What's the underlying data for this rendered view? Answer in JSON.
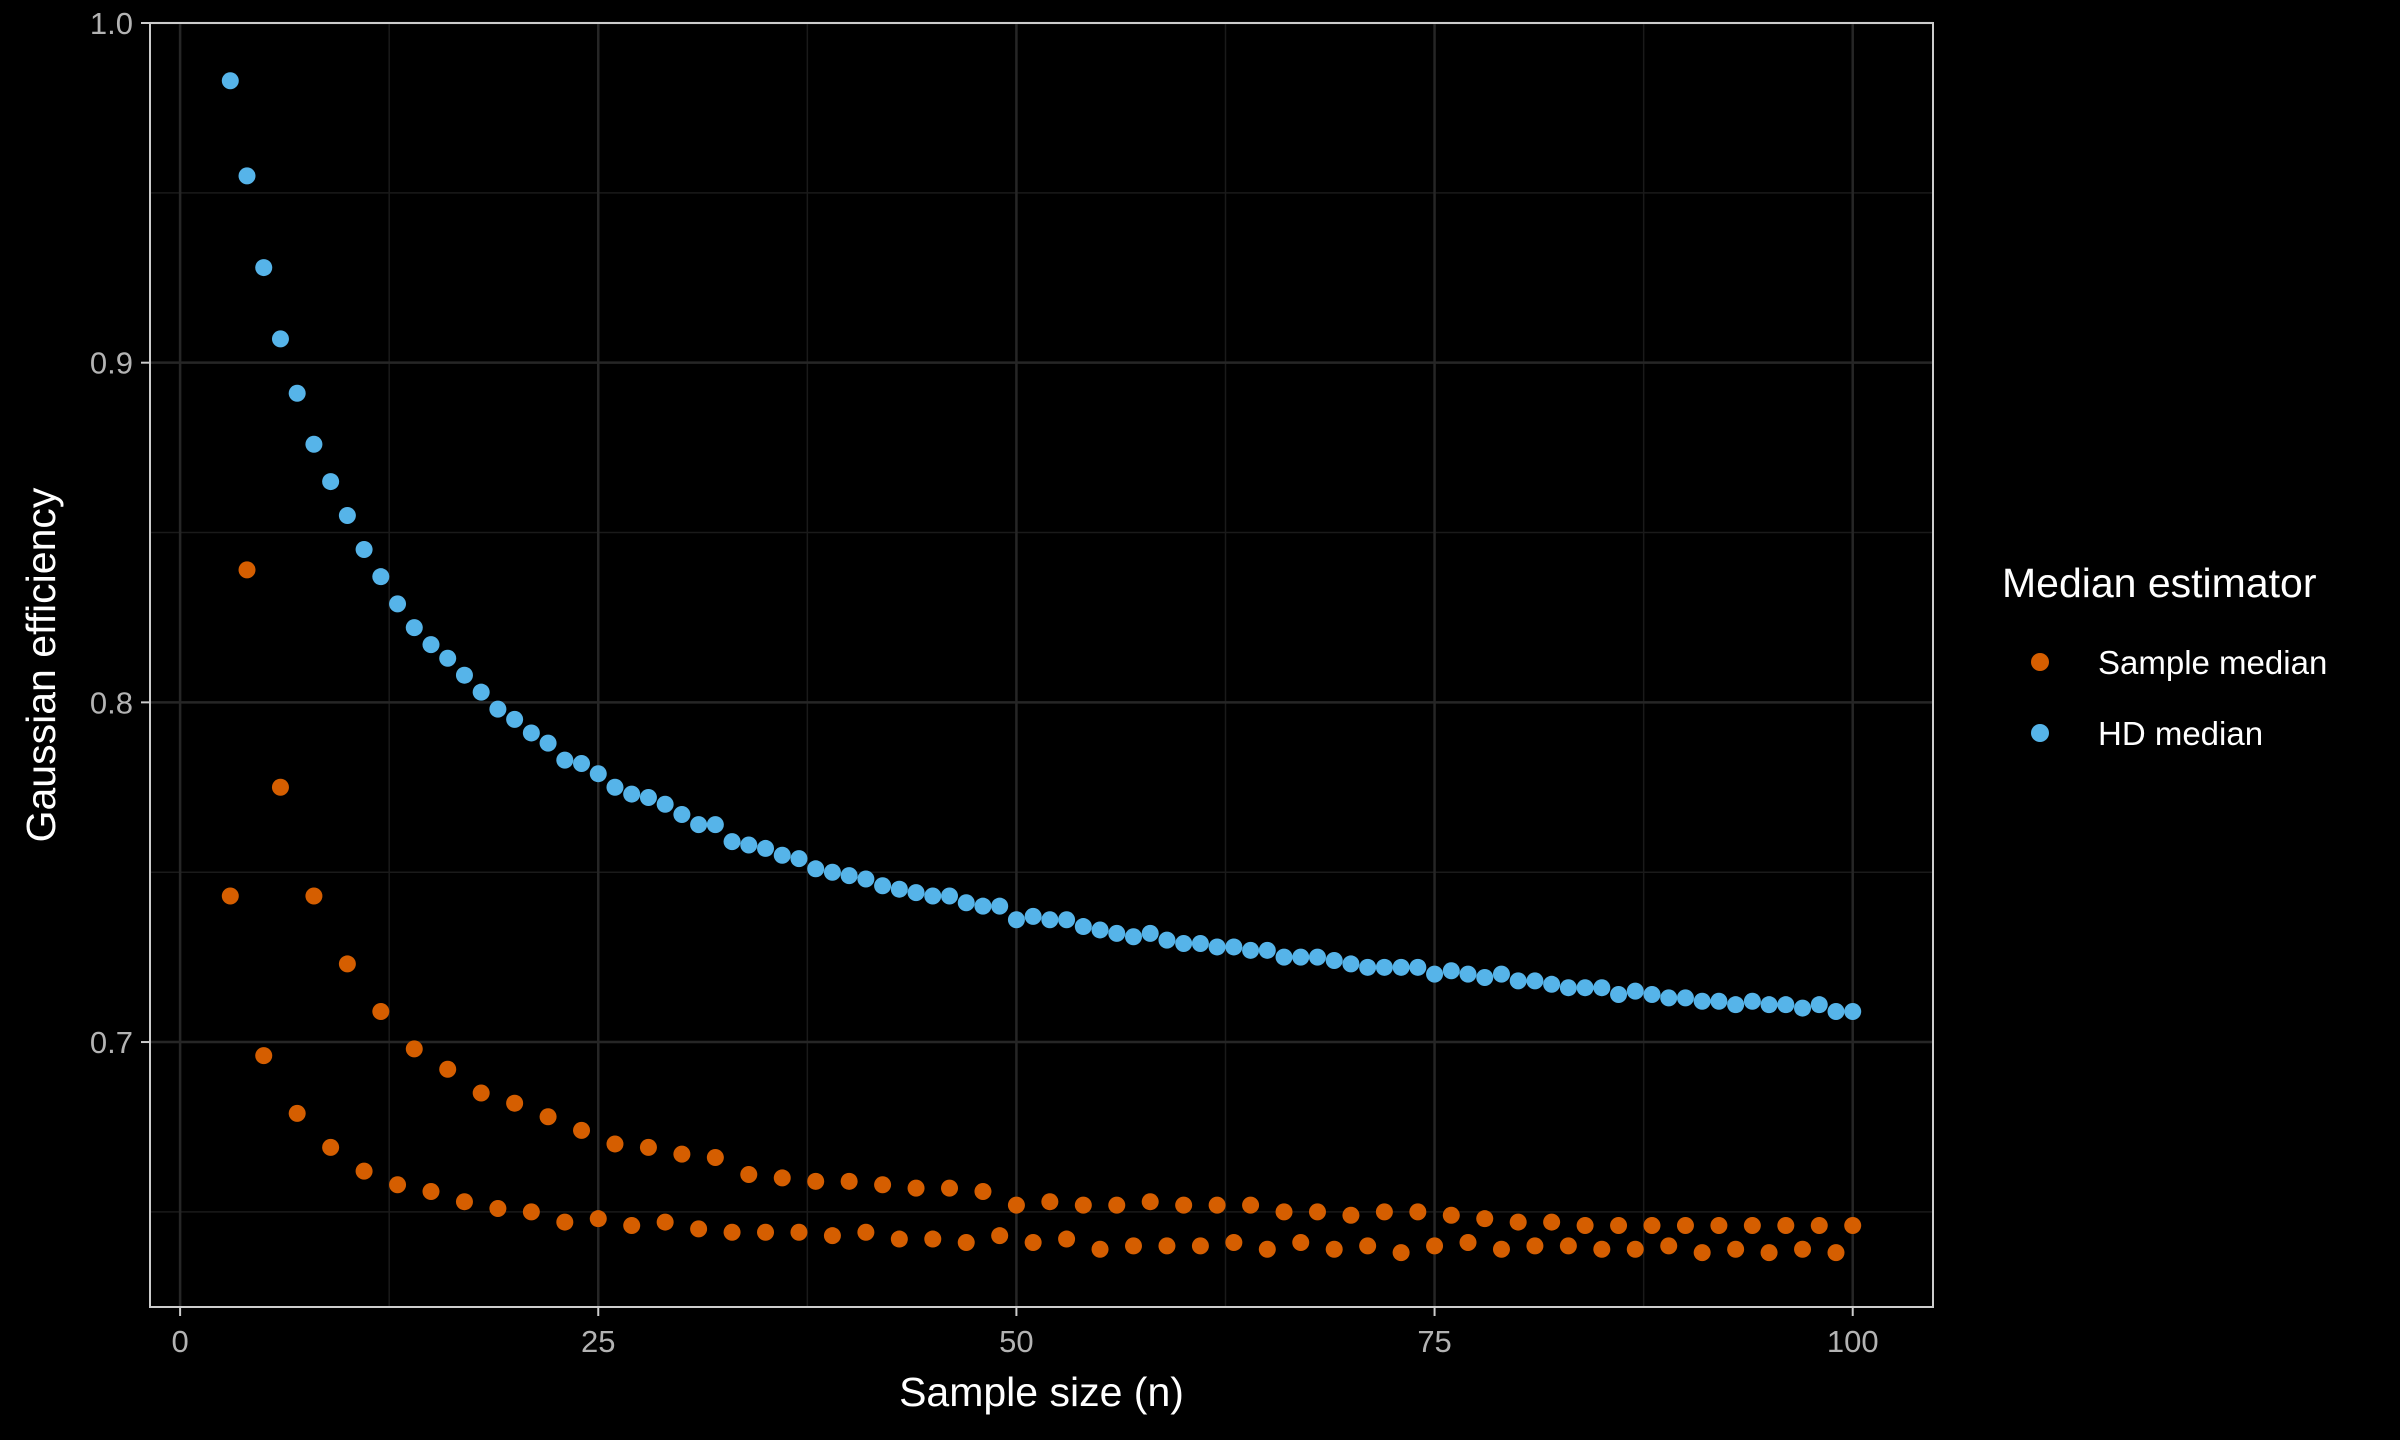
{
  "chart_data": {
    "type": "scatter",
    "title": "",
    "xlabel": "Sample size (n)",
    "ylabel": "Gaussian efficiency",
    "xlim": [
      -1.8,
      104.8
    ],
    "ylim": [
      0.622,
      1.0
    ],
    "x_ticks": [
      0,
      25,
      50,
      75,
      100
    ],
    "x_tick_labels": [
      "0",
      "25",
      "50",
      "75",
      "100"
    ],
    "y_ticks": [
      0.7,
      0.8,
      0.9,
      1.0
    ],
    "y_tick_labels": [
      "0.7",
      "0.8",
      "0.9",
      "1.0"
    ],
    "grid": true,
    "legend": {
      "title": "Median estimator",
      "position": "right"
    },
    "series": [
      {
        "name": "Sample median",
        "color": "#d55e00",
        "x": [
          3,
          4,
          5,
          6,
          7,
          8,
          9,
          10,
          11,
          12,
          13,
          14,
          15,
          16,
          17,
          18,
          19,
          20,
          21,
          22,
          23,
          24,
          25,
          26,
          27,
          28,
          29,
          30,
          31,
          32,
          33,
          34,
          35,
          36,
          37,
          38,
          39,
          40,
          41,
          42,
          43,
          44,
          45,
          46,
          47,
          48,
          49,
          50,
          51,
          52,
          53,
          54,
          55,
          56,
          57,
          58,
          59,
          60,
          61,
          62,
          63,
          64,
          65,
          66,
          67,
          68,
          69,
          70,
          71,
          72,
          73,
          74,
          75,
          76,
          77,
          78,
          79,
          80,
          81,
          82,
          83,
          84,
          85,
          86,
          87,
          88,
          89,
          90,
          91,
          92,
          93,
          94,
          95,
          96,
          97,
          98,
          99,
          100
        ],
        "y": [
          0.743,
          0.839,
          0.696,
          0.775,
          0.679,
          0.743,
          0.669,
          0.723,
          0.662,
          0.709,
          0.658,
          0.698,
          0.656,
          0.692,
          0.653,
          0.685,
          0.651,
          0.682,
          0.65,
          0.678,
          0.647,
          0.674,
          0.648,
          0.67,
          0.646,
          0.669,
          0.647,
          0.667,
          0.645,
          0.666,
          0.644,
          0.661,
          0.644,
          0.66,
          0.644,
          0.659,
          0.643,
          0.659,
          0.644,
          0.658,
          0.642,
          0.657,
          0.642,
          0.657,
          0.641,
          0.656,
          0.643,
          0.652,
          0.641,
          0.653,
          0.642,
          0.652,
          0.639,
          0.652,
          0.64,
          0.653,
          0.64,
          0.652,
          0.64,
          0.652,
          0.641,
          0.652,
          0.639,
          0.65,
          0.641,
          0.65,
          0.639,
          0.649,
          0.64,
          0.65,
          0.638,
          0.65,
          0.64,
          0.649,
          0.641,
          0.648,
          0.639,
          0.647,
          0.64,
          0.647,
          0.64,
          0.646,
          0.639,
          0.646,
          0.639,
          0.646,
          0.64,
          0.646,
          0.638,
          0.646,
          0.639,
          0.646,
          0.638,
          0.646,
          0.639,
          0.646,
          0.638,
          0.646
        ]
      },
      {
        "name": "HD median",
        "color": "#56b4e9",
        "x": [
          3,
          4,
          5,
          6,
          7,
          8,
          9,
          10,
          11,
          12,
          13,
          14,
          15,
          16,
          17,
          18,
          19,
          20,
          21,
          22,
          23,
          24,
          25,
          26,
          27,
          28,
          29,
          30,
          31,
          32,
          33,
          34,
          35,
          36,
          37,
          38,
          39,
          40,
          41,
          42,
          43,
          44,
          45,
          46,
          47,
          48,
          49,
          50,
          51,
          52,
          53,
          54,
          55,
          56,
          57,
          58,
          59,
          60,
          61,
          62,
          63,
          64,
          65,
          66,
          67,
          68,
          69,
          70,
          71,
          72,
          73,
          74,
          75,
          76,
          77,
          78,
          79,
          80,
          81,
          82,
          83,
          84,
          85,
          86,
          87,
          88,
          89,
          90,
          91,
          92,
          93,
          94,
          95,
          96,
          97,
          98,
          99,
          100
        ],
        "y": [
          0.983,
          0.955,
          0.928,
          0.907,
          0.891,
          0.876,
          0.865,
          0.855,
          0.845,
          0.837,
          0.829,
          0.822,
          0.817,
          0.813,
          0.808,
          0.803,
          0.798,
          0.795,
          0.791,
          0.788,
          0.783,
          0.782,
          0.779,
          0.775,
          0.773,
          0.772,
          0.77,
          0.767,
          0.764,
          0.764,
          0.759,
          0.758,
          0.757,
          0.755,
          0.754,
          0.751,
          0.75,
          0.749,
          0.748,
          0.746,
          0.745,
          0.744,
          0.743,
          0.743,
          0.741,
          0.74,
          0.74,
          0.736,
          0.737,
          0.736,
          0.736,
          0.734,
          0.733,
          0.732,
          0.731,
          0.732,
          0.73,
          0.729,
          0.729,
          0.728,
          0.728,
          0.727,
          0.727,
          0.725,
          0.725,
          0.725,
          0.724,
          0.723,
          0.722,
          0.722,
          0.722,
          0.722,
          0.72,
          0.721,
          0.72,
          0.719,
          0.72,
          0.718,
          0.718,
          0.717,
          0.716,
          0.716,
          0.716,
          0.714,
          0.715,
          0.714,
          0.713,
          0.713,
          0.712,
          0.712,
          0.711,
          0.712,
          0.711,
          0.711,
          0.71,
          0.711,
          0.709,
          0.709
        ]
      }
    ]
  }
}
